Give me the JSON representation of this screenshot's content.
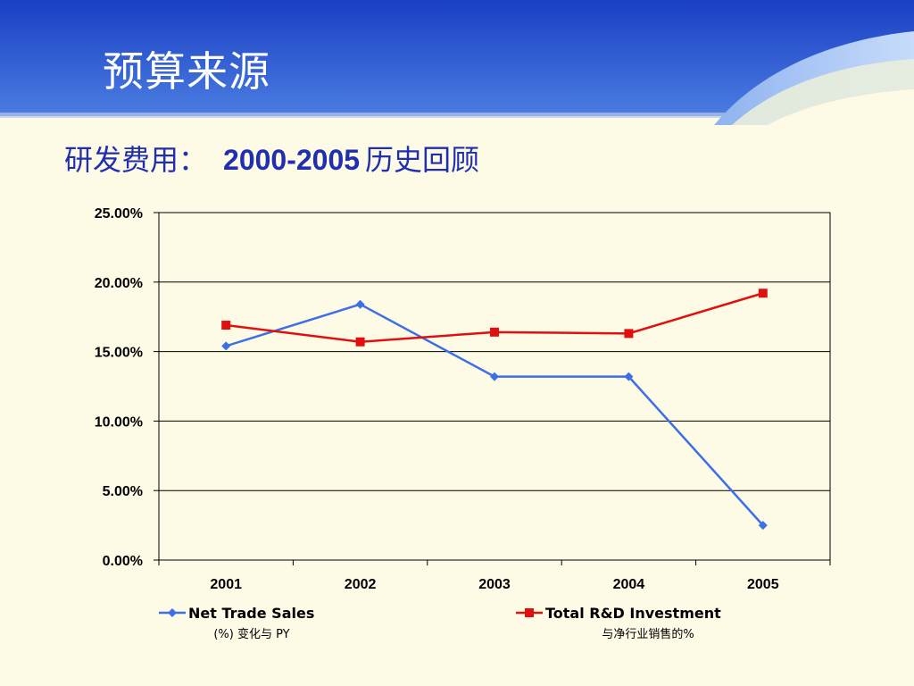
{
  "slide": {
    "title": "预算来源",
    "subtitle_prefix": "研发费用：",
    "subtitle_range": "2000-2005",
    "subtitle_suffix": "历史回顾"
  },
  "colors": {
    "header_blue": "#2a55d0",
    "background": "#fdfae6",
    "subtitle": "#1f2fb0",
    "series_net_trade_sales": "#3d6fe6",
    "series_rd_investment": "#e01010"
  },
  "chart_data": {
    "type": "line",
    "title": "",
    "xlabel": "",
    "ylabel": "",
    "categories": [
      "2001",
      "2002",
      "2003",
      "2004",
      "2005"
    ],
    "ylim": [
      0,
      25
    ],
    "y_ticks": [
      "0.00%",
      "5.00%",
      "10.00%",
      "15.00%",
      "20.00%",
      "25.00%"
    ],
    "grid": true,
    "legend_position": "bottom",
    "series": [
      {
        "name": "Net Trade Sales",
        "note": "(%) 变化与 PY",
        "marker": "diamond",
        "color": "#3d6fe6",
        "values": [
          15.4,
          18.4,
          13.2,
          13.2,
          2.5
        ]
      },
      {
        "name": "Total R&D Investment",
        "note": "与净行业销售的%",
        "marker": "square",
        "color": "#e01010",
        "values": [
          16.9,
          15.7,
          16.4,
          16.3,
          19.2
        ]
      }
    ]
  }
}
